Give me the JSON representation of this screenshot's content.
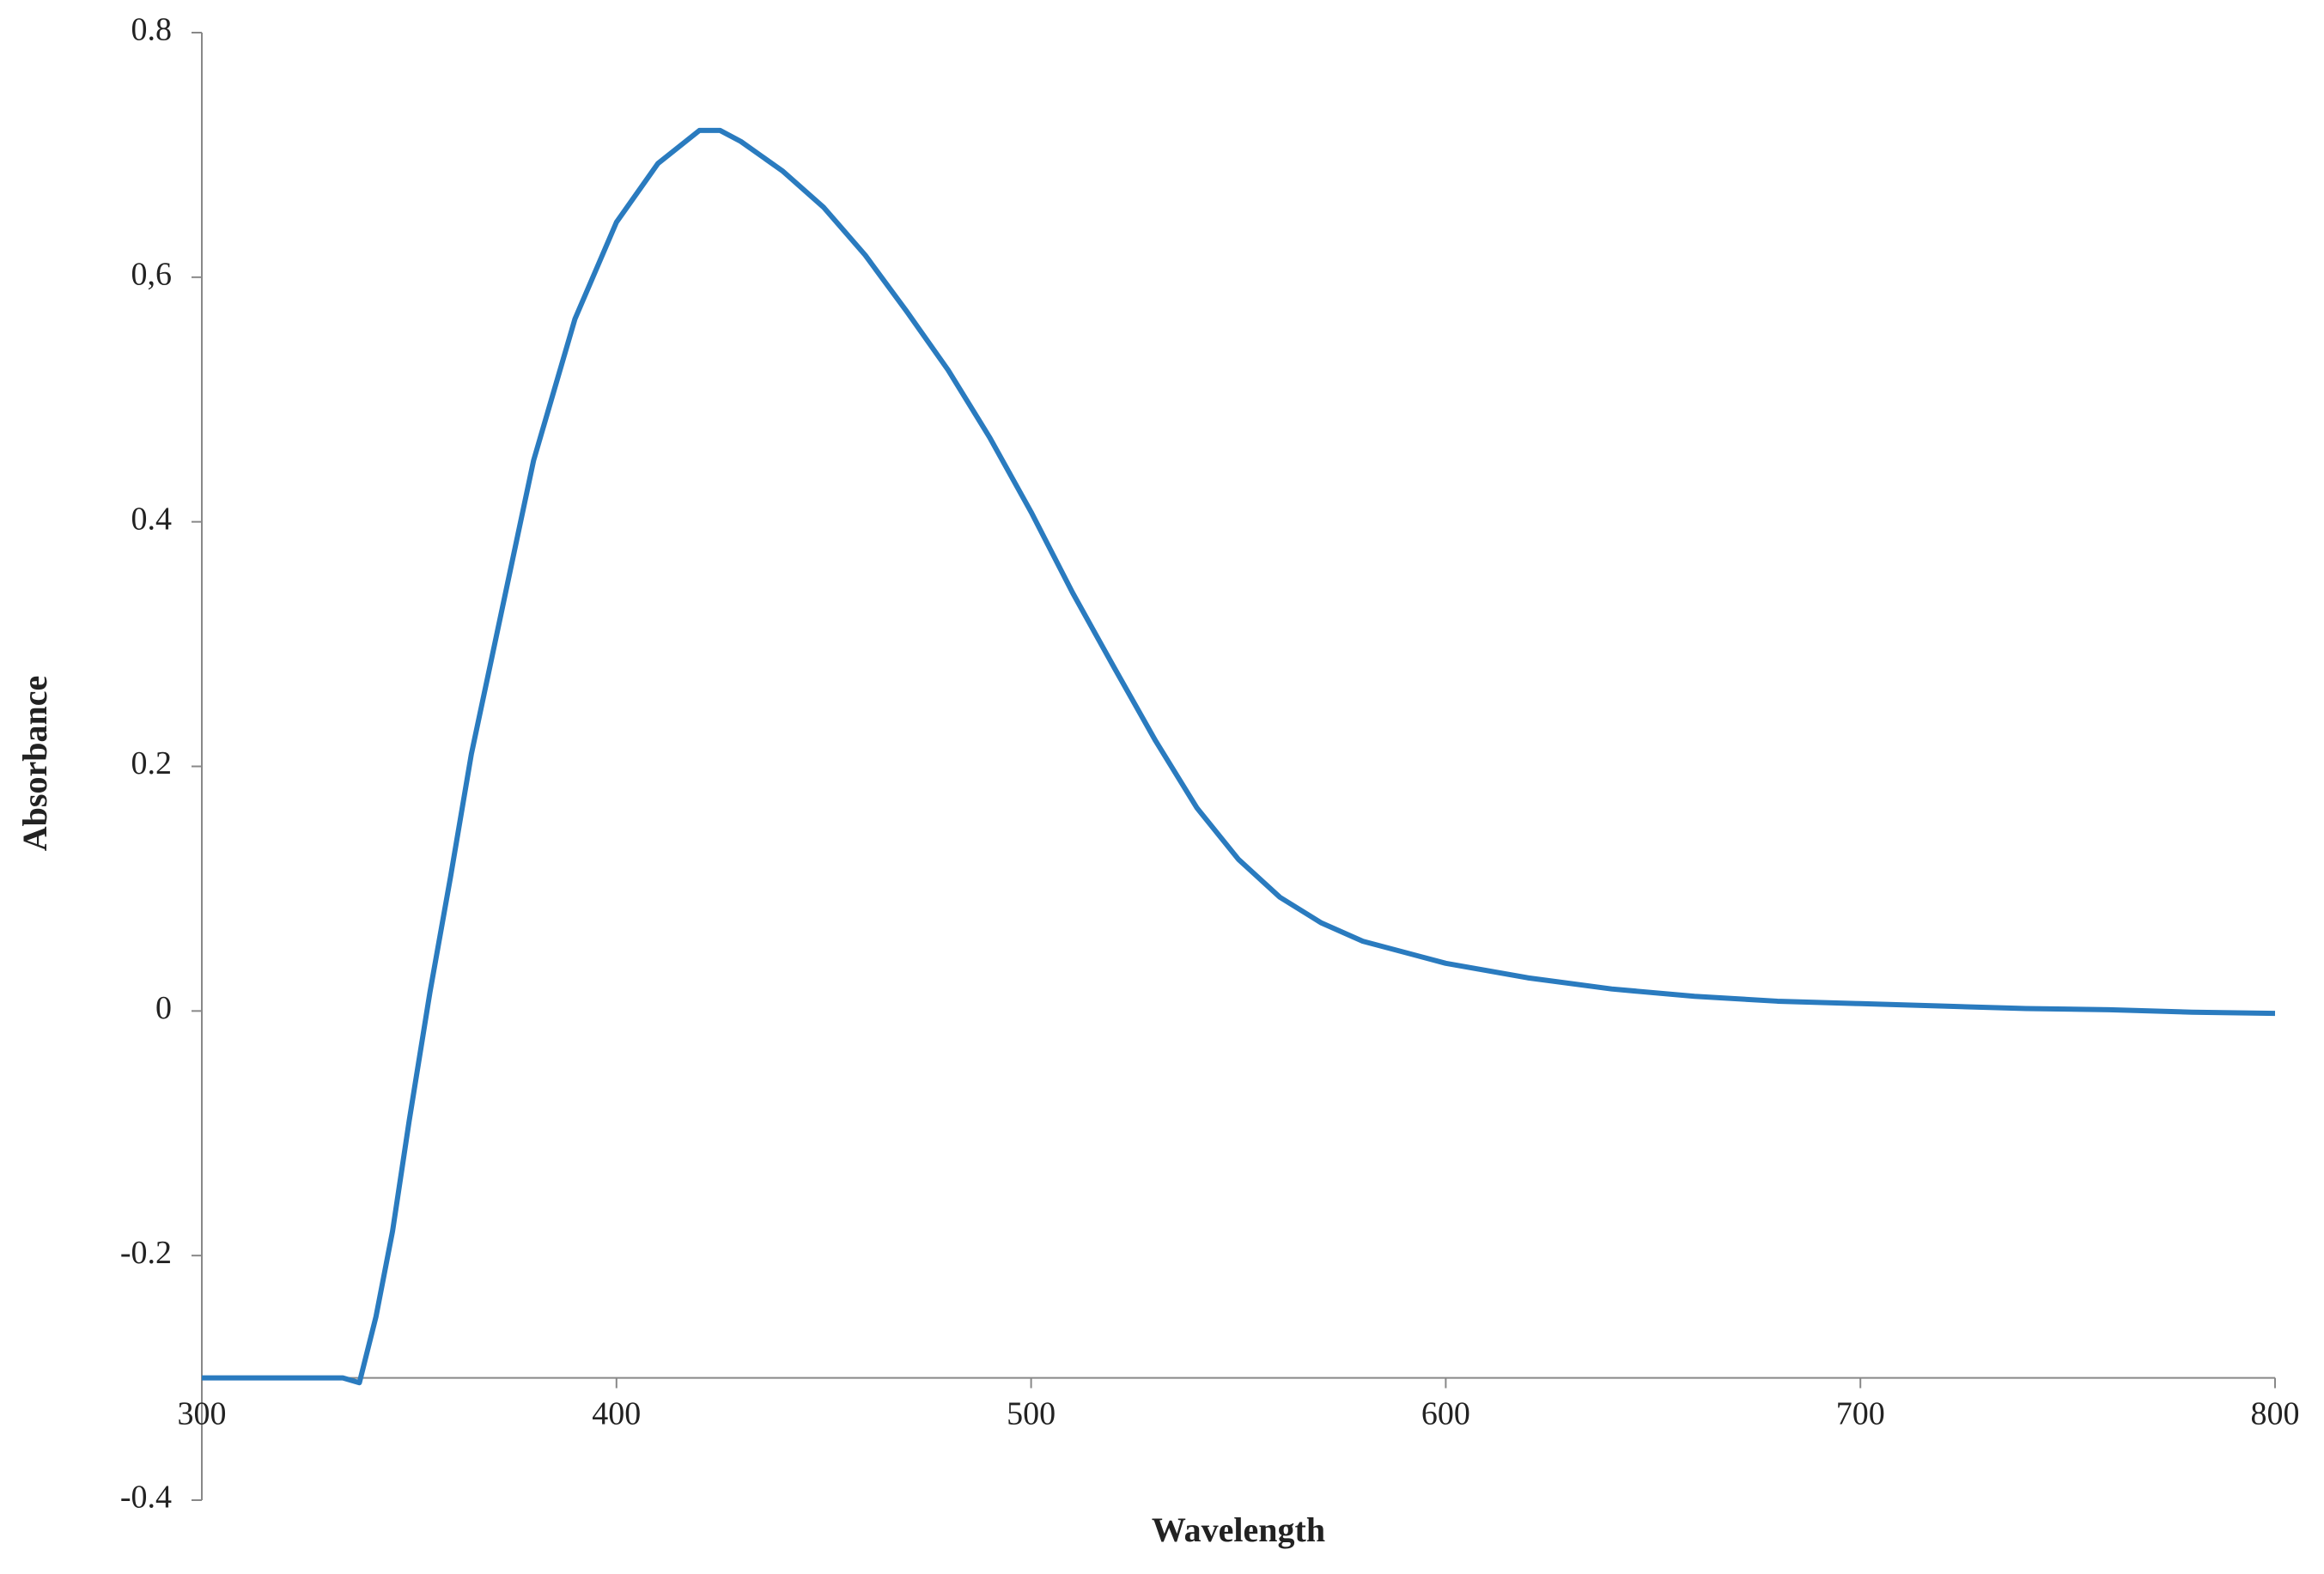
{
  "chart_data": {
    "type": "line",
    "x_label": "Wavelength",
    "y_label": "Absorbance",
    "x": [
      300,
      320,
      334,
      338,
      342,
      346,
      350,
      355,
      360,
      365,
      370,
      375,
      380,
      390,
      400,
      410,
      420,
      425,
      430,
      440,
      450,
      460,
      470,
      480,
      490,
      500,
      510,
      520,
      530,
      540,
      550,
      560,
      570,
      580,
      600,
      620,
      640,
      660,
      680,
      700,
      720,
      740,
      760,
      780,
      800
    ],
    "series": [
      {
        "color": "#2a7bbf",
        "values": [
          -0.3,
          -0.3,
          -0.3,
          -0.304,
          -0.25,
          -0.18,
          -0.09,
          0.015,
          0.11,
          0.21,
          0.29,
          0.37,
          0.45,
          0.566,
          0.645,
          0.693,
          0.72,
          0.72,
          0.711,
          0.687,
          0.657,
          0.618,
          0.572,
          0.524,
          0.469,
          0.408,
          0.342,
          0.281,
          0.221,
          0.166,
          0.124,
          0.093,
          0.072,
          0.057,
          0.039,
          0.027,
          0.018,
          0.012,
          0.008,
          0.006,
          0.004,
          0.002,
          0.001,
          -0.001,
          -0.002
        ]
      }
    ],
    "xlim": [
      300,
      800
    ],
    "xticks": [
      300,
      400,
      500,
      600,
      700,
      800
    ],
    "ylim": [
      -0.4,
      0.8
    ],
    "yticks": [
      -0.4,
      -0.2,
      0,
      0.2,
      0.4,
      {
        "value": 0.6,
        "label": "0,6"
      },
      0.8
    ],
    "x_axis_crosses_at": -0.3,
    "grid": false
  }
}
